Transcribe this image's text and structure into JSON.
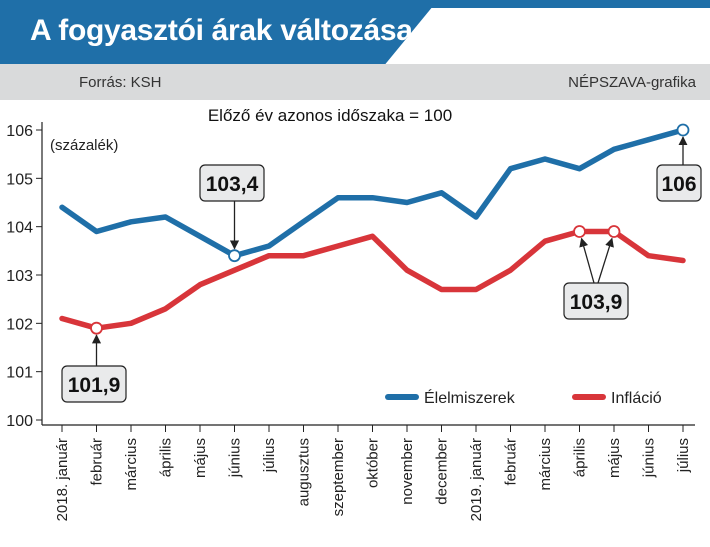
{
  "header": {
    "title": "A fogyasztói árak változása",
    "source": "Forrás: KSH",
    "credit": "NÉPSZAVA-grafika"
  },
  "colors": {
    "header_blue": "#1f6fa8",
    "food_line": "#1f6fa8",
    "inflation_line": "#d8353a"
  },
  "chart_data": {
    "type": "line",
    "subtitle": "Előző év azonos időszaka = 100",
    "ylabel": "(százalék)",
    "ylim": [
      100,
      106
    ],
    "yticks": [
      100,
      101,
      102,
      103,
      104,
      105,
      106
    ],
    "grid": false,
    "legend_position": "bottom-right",
    "x": [
      "2018. január",
      "február",
      "március",
      "április",
      "május",
      "június",
      "július",
      "augusztus",
      "szeptember",
      "október",
      "november",
      "december",
      "2019. január",
      "február",
      "március",
      "április",
      "május",
      "június",
      "július"
    ],
    "series": [
      {
        "name": "Élelmiszerek",
        "color": "#1f6fa8",
        "values": [
          104.4,
          103.9,
          104.1,
          104.2,
          103.8,
          103.4,
          103.6,
          104.1,
          104.6,
          104.6,
          104.5,
          104.7,
          104.2,
          105.2,
          105.4,
          105.2,
          105.6,
          105.8,
          106.0
        ]
      },
      {
        "name": "Infláció",
        "color": "#d8353a",
        "values": [
          102.1,
          101.9,
          102.0,
          102.3,
          102.8,
          103.1,
          103.4,
          103.4,
          103.6,
          103.8,
          103.1,
          102.7,
          102.7,
          103.1,
          103.7,
          103.9,
          103.9,
          103.4,
          103.3
        ]
      }
    ],
    "annotations": [
      {
        "label": "101,9",
        "series": 1,
        "index": 1
      },
      {
        "label": "103,4",
        "series": 0,
        "index": 5
      },
      {
        "label": "106",
        "series": 0,
        "index": 18
      },
      {
        "label": "103,9",
        "series": 1,
        "index": 15
      },
      {
        "label": "103,9",
        "series": 1,
        "index": 16
      }
    ]
  }
}
